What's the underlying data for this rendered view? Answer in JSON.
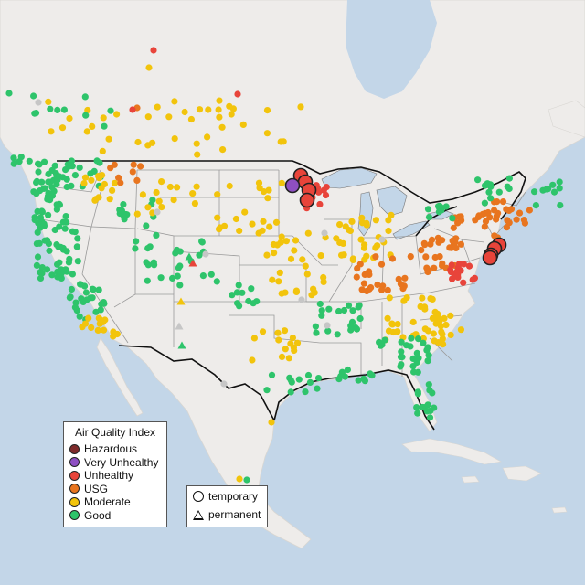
{
  "legend": {
    "title": "Air Quality Index",
    "categories": [
      {
        "label": "Hazardous",
        "color": "#7e2a2a"
      },
      {
        "label": "Very Unhealthy",
        "color": "#8e4fc2"
      },
      {
        "label": "Unhealthy",
        "color": "#e8443a"
      },
      {
        "label": "USG",
        "color": "#e8751f"
      },
      {
        "label": "Moderate",
        "color": "#f2c40c"
      },
      {
        "label": "Good",
        "color": "#2ec46b"
      }
    ]
  },
  "monitor_types": [
    {
      "label": "temporary",
      "symbol": "circle-icon"
    },
    {
      "label": "permanent",
      "symbol": "triangle-icon"
    }
  ],
  "colors": {
    "ocean": "#c3d6e8",
    "land": "#eeecea",
    "great_lakes": "#c3d6e8",
    "state_border": "#9a9a9a",
    "country_border": "#111111",
    "no_data": "#c6c6c6"
  }
}
